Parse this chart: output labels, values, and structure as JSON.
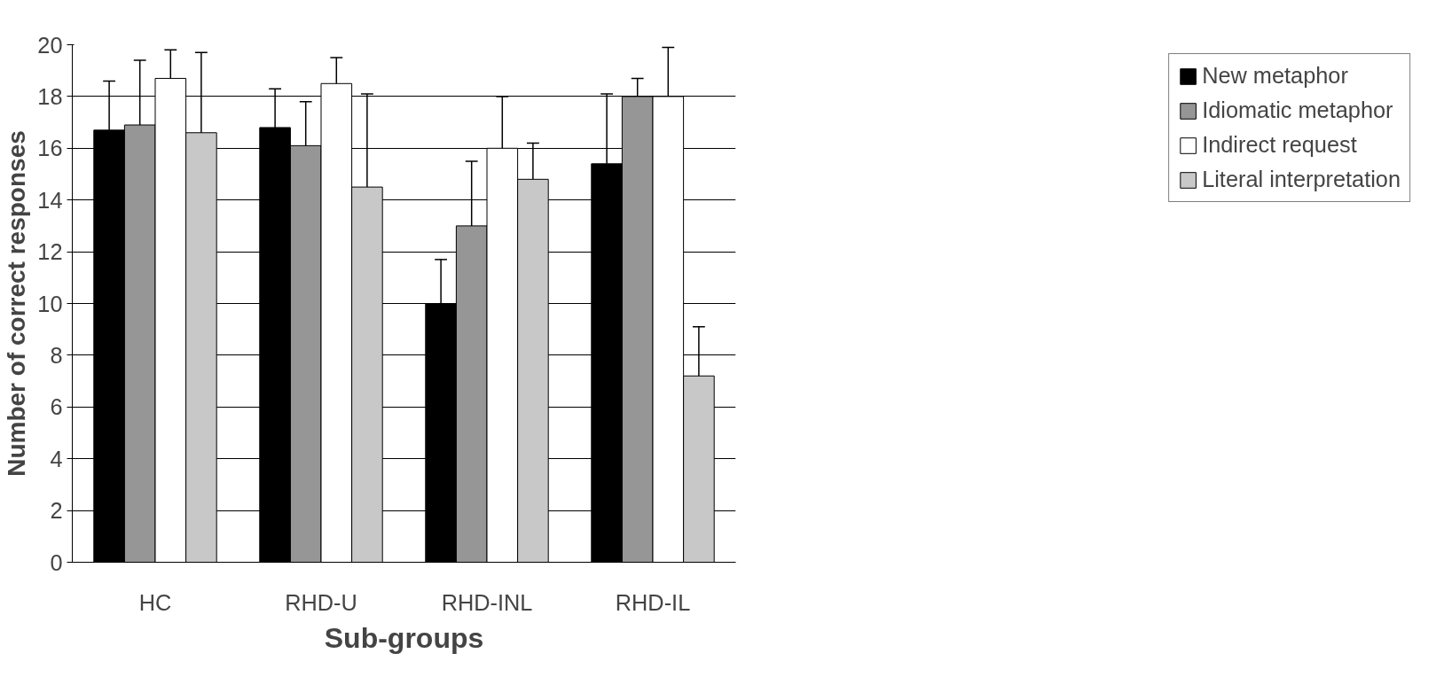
{
  "chart_data": {
    "type": "bar",
    "xlabel": "Sub-groups",
    "ylabel": "Number of correct responses",
    "categories": [
      "HC",
      "RHD-U",
      "RHD-INL",
      "RHD-IL"
    ],
    "series": [
      {
        "name": "New metaphor",
        "color": "#000000",
        "values": [
          16.7,
          16.8,
          10.0,
          15.4
        ],
        "errors": [
          [
            16.7,
            18.6
          ],
          [
            16.8,
            18.3
          ],
          [
            10.0,
            11.7
          ],
          [
            15.4,
            18.1
          ]
        ]
      },
      {
        "name": "Idiomatic metaphor",
        "color": "#969696",
        "values": [
          16.9,
          16.1,
          13.0,
          18.0
        ],
        "errors": [
          [
            16.9,
            19.4
          ],
          [
            16.1,
            17.8
          ],
          [
            13.0,
            15.5
          ],
          [
            18.0,
            18.7
          ]
        ]
      },
      {
        "name": "Indirect request",
        "color": "#ffffff",
        "values": [
          18.7,
          18.5,
          16.0,
          18.0
        ],
        "errors": [
          [
            18.7,
            19.8
          ],
          [
            18.5,
            19.5
          ],
          [
            16.0,
            18.0
          ],
          [
            18.0,
            19.9
          ]
        ]
      },
      {
        "name": "Literal interpretation",
        "color": "#c8c8c8",
        "values": [
          16.6,
          14.5,
          14.8,
          7.2
        ],
        "errors": [
          [
            16.6,
            19.7
          ],
          [
            14.5,
            18.1
          ],
          [
            14.8,
            16.2
          ],
          [
            7.2,
            9.1
          ]
        ]
      }
    ],
    "ylim": [
      0,
      20
    ],
    "yticks": [
      0,
      2,
      4,
      6,
      8,
      10,
      12,
      14,
      16,
      18,
      20
    ],
    "grid": "y",
    "legend": "right"
  }
}
